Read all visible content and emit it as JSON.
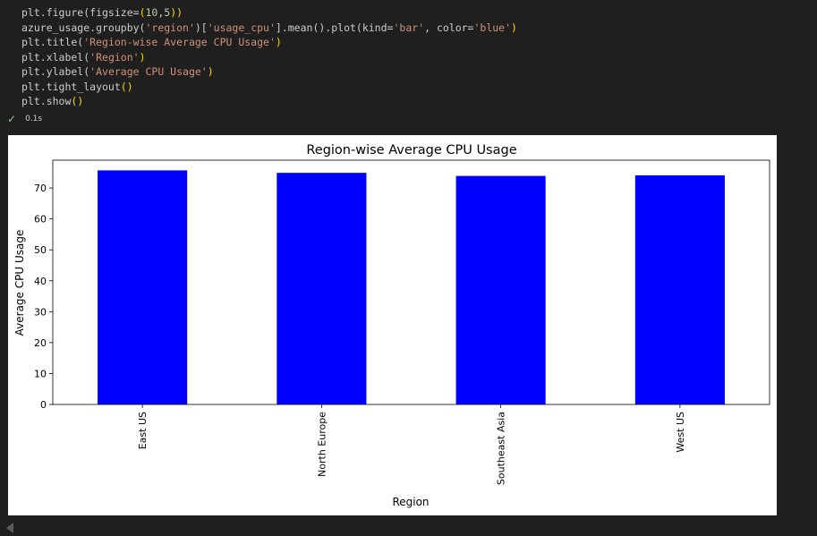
{
  "code": {
    "lines": [
      [
        {
          "t": "plt.figure(figsize",
          "c": "#cccccc"
        },
        {
          "t": "=",
          "c": "#cccccc"
        },
        {
          "t": "(",
          "c": "#ffd700"
        },
        {
          "t": "10",
          "c": "#b5cea8"
        },
        {
          "t": ",",
          "c": "#cccccc"
        },
        {
          "t": "5",
          "c": "#b5cea8"
        },
        {
          "t": ")",
          "c": "#ffd700"
        },
        {
          "t": ")",
          "c": "#ffd700"
        }
      ],
      [
        {
          "t": "azure_usage.groupby(",
          "c": "#cccccc"
        },
        {
          "t": "'region'",
          "c": "#ce9178"
        },
        {
          "t": ")[",
          "c": "#cccccc"
        },
        {
          "t": "'usage_cpu'",
          "c": "#ce9178"
        },
        {
          "t": "].mean().plot(kind=",
          "c": "#cccccc"
        },
        {
          "t": "'bar'",
          "c": "#ce9178"
        },
        {
          "t": ", color=",
          "c": "#cccccc"
        },
        {
          "t": "'blue'",
          "c": "#ce9178"
        },
        {
          "t": ")",
          "c": "#ffd700"
        }
      ],
      [
        {
          "t": "plt.title(",
          "c": "#cccccc"
        },
        {
          "t": "'Region-wise Average CPU Usage'",
          "c": "#ce9178"
        },
        {
          "t": ")",
          "c": "#ffd700"
        }
      ],
      [
        {
          "t": "plt.xlabel(",
          "c": "#cccccc"
        },
        {
          "t": "'Region'",
          "c": "#ce9178"
        },
        {
          "t": ")",
          "c": "#ffd700"
        }
      ],
      [
        {
          "t": "plt.ylabel(",
          "c": "#cccccc"
        },
        {
          "t": "'Average CPU Usage'",
          "c": "#ce9178"
        },
        {
          "t": ")",
          "c": "#ffd700"
        }
      ],
      [
        {
          "t": "plt.tight_layout",
          "c": "#cccccc"
        },
        {
          "t": "()",
          "c": "#ffd700"
        }
      ],
      [
        {
          "t": "plt.show",
          "c": "#cccccc"
        },
        {
          "t": "()",
          "c": "#ffd700"
        }
      ]
    ]
  },
  "status": {
    "check_icon": "check-icon",
    "time": "0.1s",
    "check_color": "#89d185"
  },
  "chart_data": {
    "type": "bar",
    "title": "Region-wise Average CPU Usage",
    "xlabel": "Region",
    "ylabel": "Average CPU Usage",
    "categories": [
      "East US",
      "North Europe",
      "Southeast Asia",
      "West US"
    ],
    "values": [
      75.7,
      74.9,
      73.9,
      74.1
    ],
    "ylim": [
      0,
      79
    ],
    "yticks": [
      0,
      10,
      20,
      30,
      40,
      50,
      60,
      70
    ],
    "color": "#0000ff",
    "grid": false,
    "legend": "none"
  }
}
